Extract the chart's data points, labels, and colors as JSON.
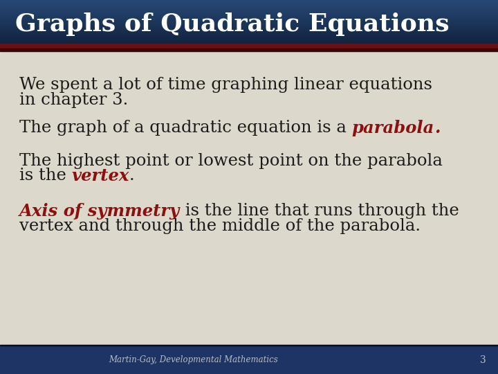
{
  "title": "Graphs of Quadratic Equations",
  "title_color": "#ffffff",
  "body_bg": "#ddd8cc",
  "footer_bg": "#1e3464",
  "footer_text": "Martin-Gay, Developmental Mathematics",
  "footer_number": "3",
  "footer_text_color": "#b8bcc8",
  "dark_text": "#1a1a1a",
  "red_text": "#8b1010",
  "bullet1_line1": "We spent a lot of time graphing linear equations",
  "bullet1_line2": "in chapter 3.",
  "bullet2_pre": "The graph of a quadratic equation is a ",
  "bullet2_italic": "parabola",
  "bullet2_end": ".",
  "bullet3_line1": "The highest point or lowest point on the parabola",
  "bullet3_line2_pre": "is the ",
  "bullet3_line2_italic": "vertex",
  "bullet3_line2_end": ".",
  "bullet4_italic": "Axis of symmetry",
  "bullet4_rest": " is the line that runs through the",
  "bullet4_line2": "vertex and through the middle of the parabola.",
  "figsize": [
    7.2,
    5.4
  ],
  "dpi": 100
}
